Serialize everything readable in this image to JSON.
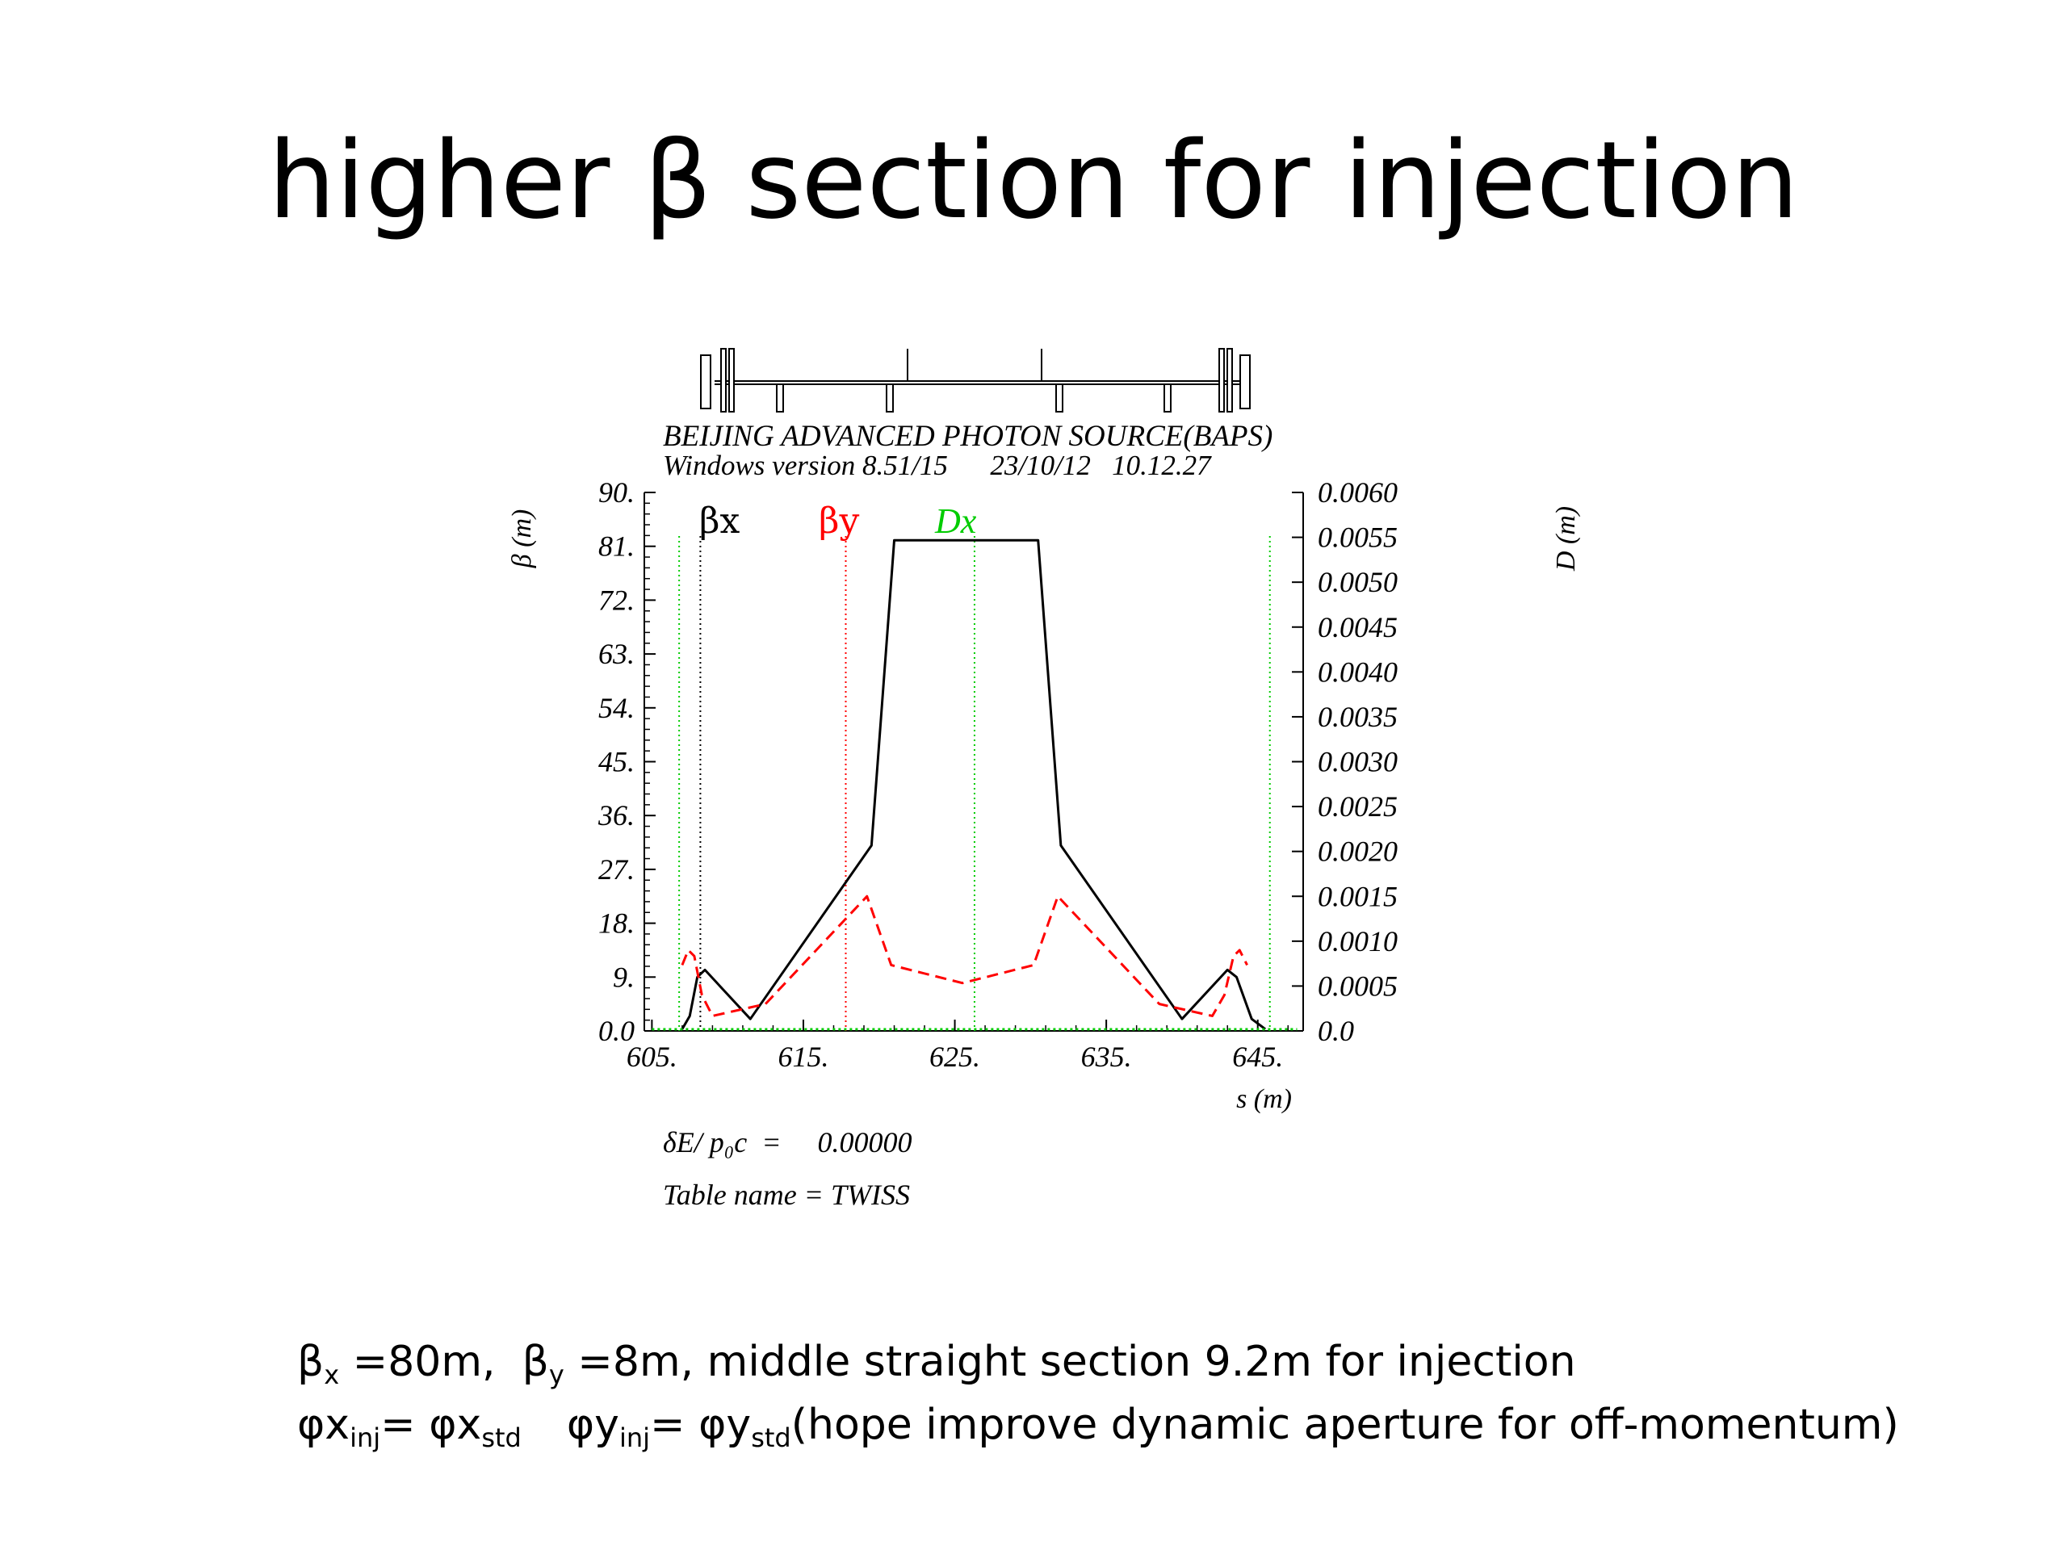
{
  "slide": {
    "title": "higher β section for injection",
    "notes": {
      "line1": {
        "beta": "β",
        "sub_x": "x",
        "text1": " =80m,  ",
        "beta2": "β",
        "sub_y": "y",
        "text2": " =8m, middle straight section 9.2m for injection"
      },
      "line2": {
        "phi_x": "φx",
        "sub_inj": "inj",
        "eq1": "= φx",
        "sub_std": "std",
        "phi_y": "φy",
        "sub_inj2": "inj",
        "eq2": "= φy",
        "sub_std2": "std",
        "tail": "(hope improve dynamic aperture for off-momentum)"
      }
    }
  },
  "chart_data": {
    "type": "line",
    "title": "BEIJING ADVANCED PHOTON SOURCE(BAPS)",
    "subtitle": "Windows version 8.51/15      23/10/12   10.12.27",
    "xlabel": "s (m)",
    "ylabel_left": "β (m)",
    "ylabel_right": "D (m)",
    "xlim": [
      604.5,
      648.0
    ],
    "ylim_left": [
      0,
      90
    ],
    "ylim_right": [
      0,
      0.006
    ],
    "x_ticks": [
      "605.",
      "615.",
      "625.",
      "635.",
      "645."
    ],
    "x_tick_values": [
      605,
      615,
      625,
      635,
      645
    ],
    "y_ticks_left": [
      "0.0",
      "9.",
      "18.",
      "27.",
      "36.",
      "45.",
      "54.",
      "63.",
      "72.",
      "81.",
      "90."
    ],
    "y_ticks_right": [
      "0.0",
      "0.0005",
      "0.0010",
      "0.0015",
      "0.0020",
      "0.0025",
      "0.0030",
      "0.0035",
      "0.0040",
      "0.0045",
      "0.0050",
      "0.0055",
      "0.0060"
    ],
    "legend": [
      {
        "name": "βx",
        "color": "#000000"
      },
      {
        "name": "βy",
        "color": "#ff0000"
      },
      {
        "name": "Dx",
        "color": "#00cc00"
      }
    ],
    "series": [
      {
        "name": "βx",
        "color": "#000000",
        "style": "solid",
        "x": [
          607.0,
          607.5,
          608.0,
          608.5,
          611.5,
          619.5,
          621.0,
          630.5,
          632.0,
          640.0,
          643.0,
          643.6,
          644.6,
          645.5
        ],
        "y": [
          0.3,
          2.5,
          9.0,
          10.2,
          2.0,
          31.0,
          82.0,
          82.0,
          31.0,
          2.0,
          10.2,
          9.0,
          2.0,
          0.3
        ]
      },
      {
        "name": "βy",
        "color": "#ff0000",
        "style": "dashed",
        "x": [
          607.0,
          607.4,
          607.8,
          608.3,
          609.0,
          612.5,
          619.2,
          620.8,
          625.5,
          630.2,
          631.8,
          638.5,
          642.0,
          642.8,
          643.4,
          643.8,
          644.3
        ],
        "y": [
          11.0,
          13.5,
          12.5,
          6.0,
          2.5,
          4.5,
          22.5,
          11.0,
          8.0,
          11.0,
          22.5,
          4.5,
          2.5,
          6.0,
          12.5,
          13.5,
          11.0
        ]
      },
      {
        "name": "Dx",
        "color": "#00cc00",
        "style": "dotted",
        "x": [
          605.0,
          647.6
        ],
        "y": [
          0.0,
          0.0
        ]
      }
    ],
    "vertical_markers": [
      {
        "x": 606.8,
        "color": "#00cc00"
      },
      {
        "x": 608.2,
        "color": "#000000"
      },
      {
        "x": 617.8,
        "color": "#ff0000"
      },
      {
        "x": 626.3,
        "color": "#00cc00"
      },
      {
        "x": 645.8,
        "color": "#00cc00"
      }
    ],
    "annotations": [
      "δE/ p₀c  =     0.00000",
      "Table name = TWISS"
    ]
  }
}
